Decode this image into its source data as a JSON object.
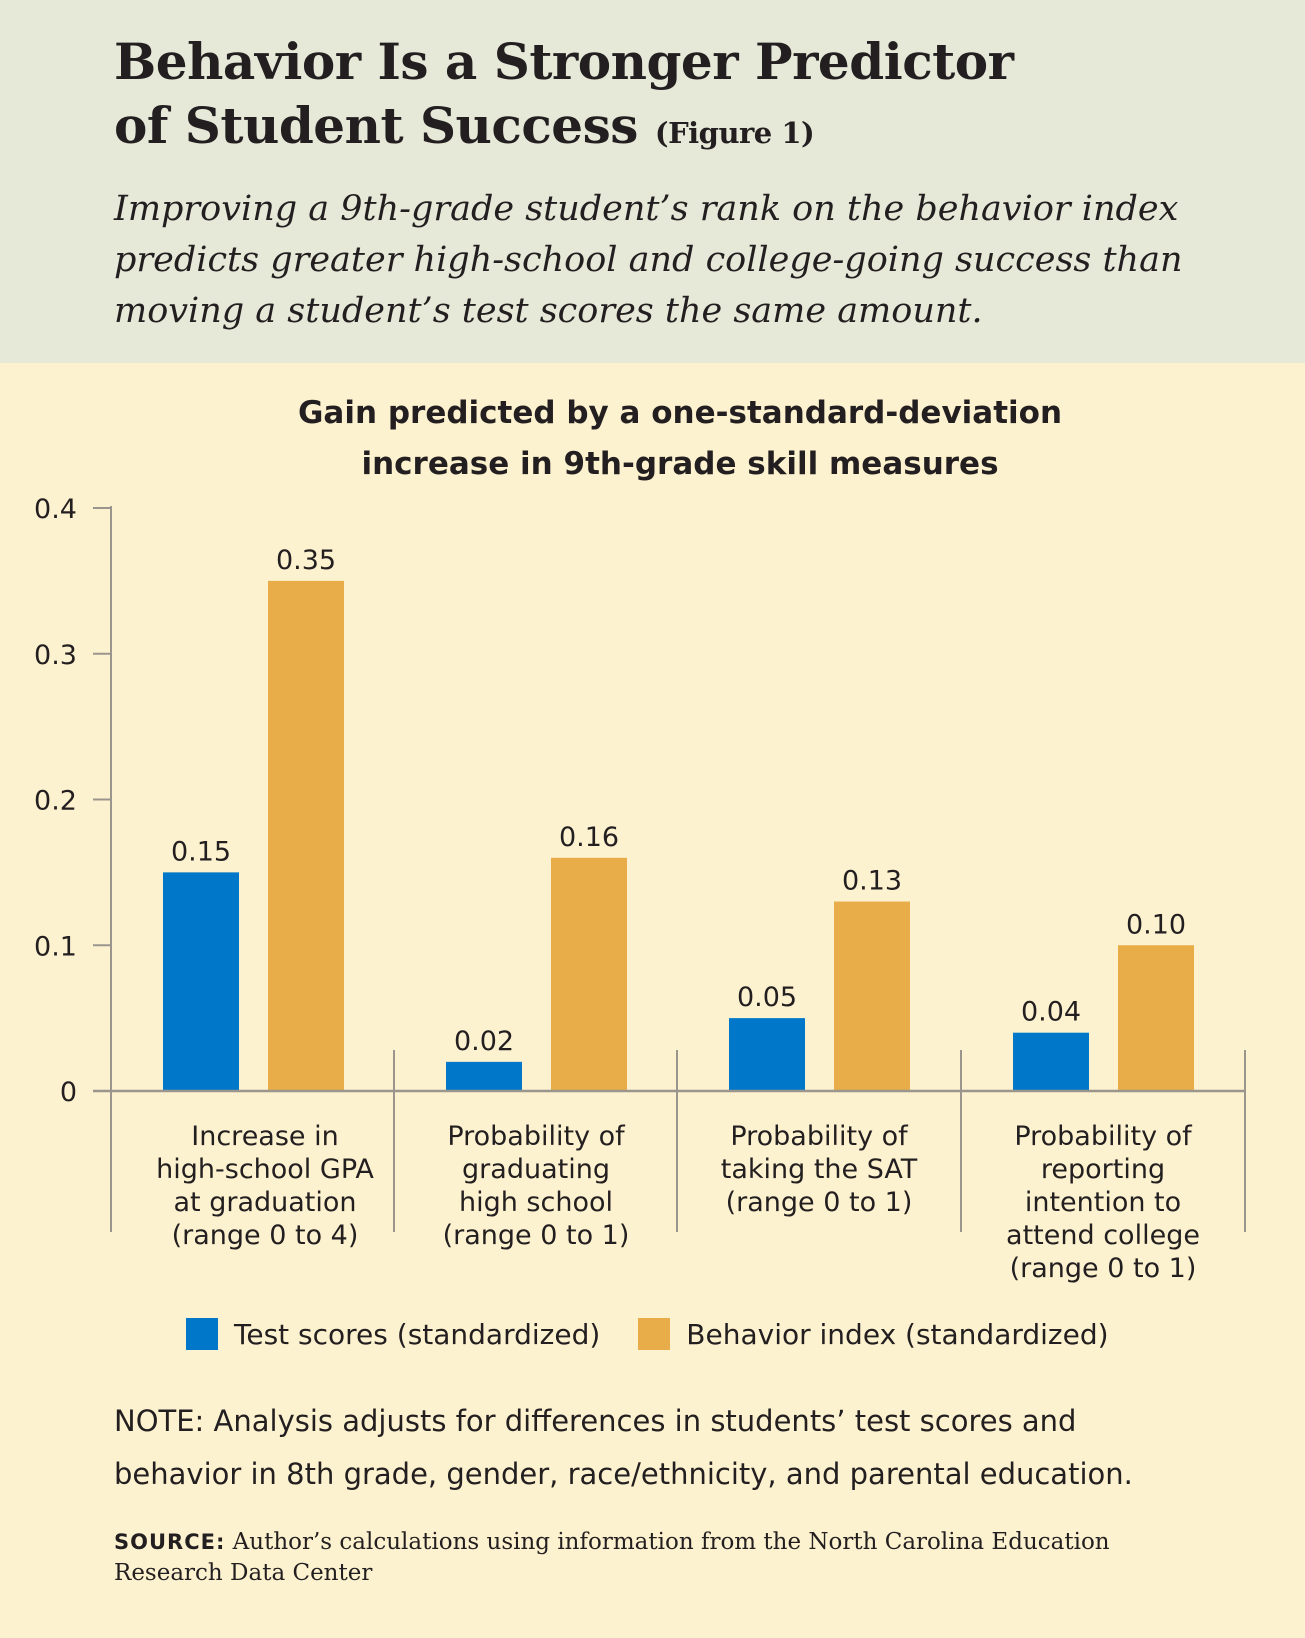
{
  "header": {
    "title_line1": "Behavior Is a Stronger Predictor",
    "title_line2": "of Student Success",
    "figure_label": "(Figure 1)",
    "subtitle_line1": "Improving a 9th-grade student’s rank on the behavior index",
    "subtitle_line2": "predicts greater high-school and college-going success than",
    "subtitle_line3": "moving a student’s test scores the same amount."
  },
  "chart_data": {
    "type": "bar",
    "title_line1": "Gain predicted by a one-standard-deviation",
    "title_line2": "increase in 9th-grade skill measures",
    "categories": [
      [
        "Increase in",
        "high-school GPA",
        "at graduation",
        "(range 0 to 4)"
      ],
      [
        "Probability of",
        "graduating",
        "high school",
        "(range 0 to 1)"
      ],
      [
        "Probability of",
        "taking the SAT",
        "(range 0 to 1)"
      ],
      [
        "Probability of",
        "reporting",
        "intention to",
        "attend college",
        "(range 0 to 1)"
      ]
    ],
    "series": [
      {
        "name": "Test scores (standardized)",
        "color": "#0077c8",
        "values": [
          0.15,
          0.02,
          0.05,
          0.04
        ],
        "labels": [
          "0.15",
          "0.02",
          "0.05",
          "0.04"
        ]
      },
      {
        "name": "Behavior index (standardized)",
        "color": "#e8ad48",
        "values": [
          0.35,
          0.16,
          0.13,
          0.1
        ],
        "labels": [
          "0.35",
          "0.16",
          "0.13",
          "0.10"
        ]
      }
    ],
    "yticks": [
      0,
      0.1,
      0.2,
      0.3,
      0.4
    ],
    "ytick_labels": [
      "0",
      "0.1",
      "0.2",
      "0.3",
      "0.4"
    ],
    "ylim": [
      0,
      0.4
    ],
    "legend_position": "bottom",
    "grid": false
  },
  "footer": {
    "note_line1": "NOTE: Analysis adjusts for differences in students’ test scores and",
    "note_line2": "behavior in 8th grade, gender, race/ethnicity, and parental education.",
    "source_label": "SOURCE:",
    "source_text_line1": "Author’s calculations using information from the North Carolina Education",
    "source_text_line2": "Research Data Center"
  }
}
